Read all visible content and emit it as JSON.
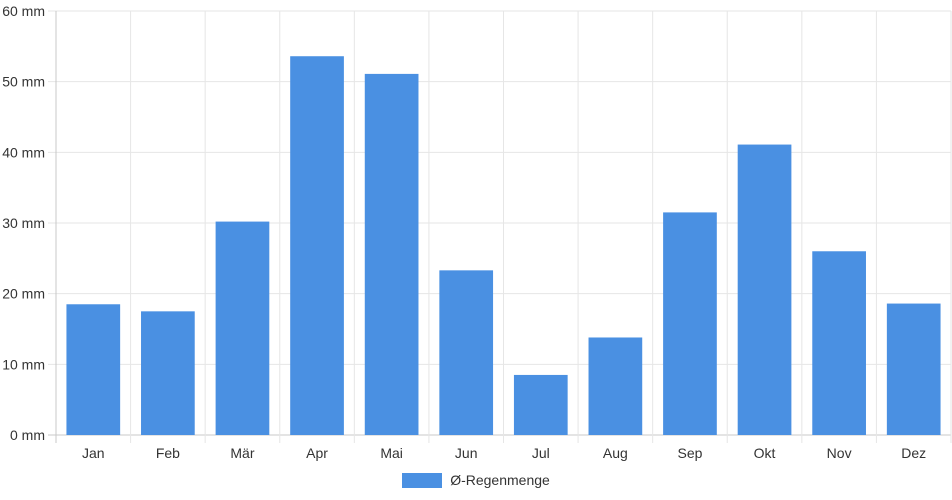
{
  "chart_data": {
    "type": "bar",
    "title": "",
    "xlabel": "",
    "ylabel": "",
    "y_unit": "mm",
    "ylim": [
      0,
      60
    ],
    "y_ticks": [
      0,
      10,
      20,
      30,
      40,
      50,
      60
    ],
    "y_tick_labels": [
      "0 mm",
      "10 mm",
      "20 mm",
      "30 mm",
      "40 mm",
      "50 mm",
      "60 mm"
    ],
    "grid": true,
    "legend_position": "bottom",
    "categories": [
      "Jan",
      "Feb",
      "Mär",
      "Apr",
      "Mai",
      "Jun",
      "Jul",
      "Aug",
      "Sep",
      "Okt",
      "Nov",
      "Dez"
    ],
    "series": [
      {
        "name": "Ø-Regenmenge",
        "color": "#4a90e2",
        "values": [
          18.5,
          17.5,
          30.2,
          53.6,
          51.1,
          23.3,
          8.5,
          13.8,
          31.5,
          41.1,
          26.0,
          18.6
        ]
      }
    ]
  }
}
